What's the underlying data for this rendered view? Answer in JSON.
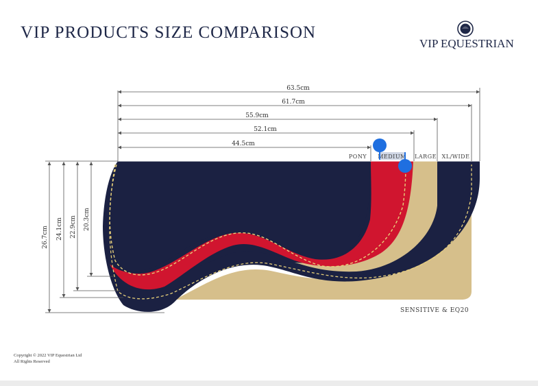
{
  "title": "VIP PRODUCTS SIZE COMPARISON",
  "brand": {
    "name": "VIP EQUESTRIAN",
    "icon": "rider-helmet-icon"
  },
  "widths": [
    "63.5cm",
    "61.7cm",
    "55.9cm",
    "52.1cm",
    "44.5cm"
  ],
  "heights": [
    "26.7cm",
    "24.1cm",
    "22.9cm",
    "20.3cm"
  ],
  "sizes": [
    "PONY",
    "MEDIUM",
    "LARGE",
    "XL/WIDE"
  ],
  "footnote": "SENSITIVE & EQ20",
  "copyright": [
    "Copyright © 2022 VIP Equestrian Ltd",
    "All Rights Reserved"
  ],
  "colors": {
    "navy": "#1b2142",
    "red": "#d0152f",
    "tan": "#d6bf8b",
    "dashed": "#e8d07a",
    "marker": "#1f6fe0"
  }
}
